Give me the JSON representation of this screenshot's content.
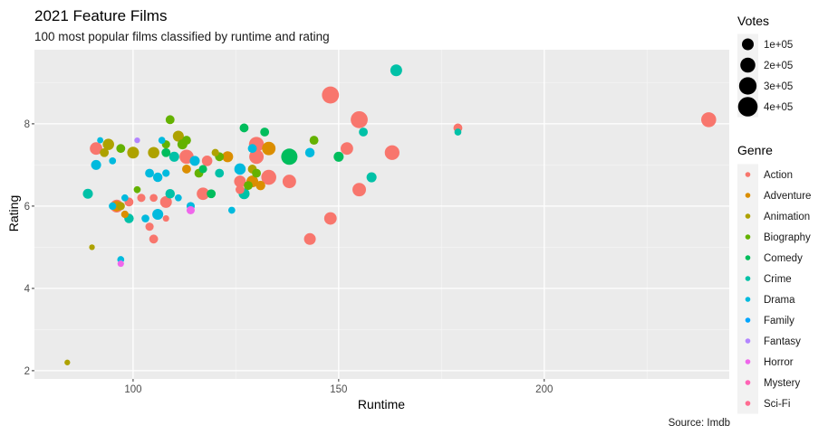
{
  "chart_data": {
    "type": "scatter",
    "title": "2021 Feature Films",
    "subtitle": "100 most popular films classified by runtime and rating",
    "xlabel": "Runtime",
    "ylabel": "Rating",
    "caption": "Source: Imdb",
    "xlim": [
      76,
      245
    ],
    "ylim": [
      1.8,
      9.8
    ],
    "x_ticks": [
      100,
      150,
      200
    ],
    "y_ticks": [
      2,
      4,
      6,
      8
    ],
    "grid": true,
    "legend_placement": "right",
    "size_legend": {
      "title": "Votes",
      "items": [
        {
          "label": "1e+05",
          "votes": 100000
        },
        {
          "label": "2e+05",
          "votes": 200000
        },
        {
          "label": "3e+05",
          "votes": 300000
        },
        {
          "label": "4e+05",
          "votes": 400000
        }
      ]
    },
    "color_legend": {
      "title": "Genre",
      "items": [
        {
          "label": "Action",
          "color": "#F8766D"
        },
        {
          "label": "Adventure",
          "color": "#DB8E00"
        },
        {
          "label": "Animation",
          "color": "#AEA200"
        },
        {
          "label": "Biography",
          "color": "#64B200"
        },
        {
          "label": "Comedy",
          "color": "#00BD5C"
        },
        {
          "label": "Crime",
          "color": "#00C1A7"
        },
        {
          "label": "Drama",
          "color": "#00BADE"
        },
        {
          "label": "Family",
          "color": "#00A6FF"
        },
        {
          "label": "Fantasy",
          "color": "#B385FF"
        },
        {
          "label": "Horror",
          "color": "#EF67EB"
        },
        {
          "label": "Mystery",
          "color": "#FF63B6"
        },
        {
          "label": "Sci-Fi",
          "color": "#FF6C91"
        }
      ]
    },
    "points": [
      {
        "x": 84,
        "y": 2.2,
        "votes": 5000,
        "genre": "Animation"
      },
      {
        "x": 90,
        "y": 5.0,
        "votes": 5000,
        "genre": "Animation"
      },
      {
        "x": 89,
        "y": 6.3,
        "votes": 60000,
        "genre": "Crime"
      },
      {
        "x": 91,
        "y": 7.0,
        "votes": 60000,
        "genre": "Drama"
      },
      {
        "x": 91,
        "y": 7.4,
        "votes": 120000,
        "genre": "Action"
      },
      {
        "x": 92,
        "y": 7.6,
        "votes": 8000,
        "genre": "Drama"
      },
      {
        "x": 93,
        "y": 7.3,
        "votes": 40000,
        "genre": "Animation"
      },
      {
        "x": 94,
        "y": 7.5,
        "votes": 90000,
        "genre": "Animation"
      },
      {
        "x": 95,
        "y": 7.1,
        "votes": 15000,
        "genre": "Drama"
      },
      {
        "x": 95,
        "y": 6.0,
        "votes": 20000,
        "genre": "Drama"
      },
      {
        "x": 96,
        "y": 6.0,
        "votes": 130000,
        "genre": "Action"
      },
      {
        "x": 96,
        "y": 6.0,
        "votes": 70000,
        "genre": "Adventure"
      },
      {
        "x": 97,
        "y": 6.0,
        "votes": 30000,
        "genre": "Animation"
      },
      {
        "x": 97,
        "y": 7.4,
        "votes": 40000,
        "genre": "Biography"
      },
      {
        "x": 97,
        "y": 4.7,
        "votes": 15000,
        "genre": "Drama"
      },
      {
        "x": 97,
        "y": 4.6,
        "votes": 10000,
        "genre": "Horror"
      },
      {
        "x": 98,
        "y": 5.8,
        "votes": 20000,
        "genre": "Adventure"
      },
      {
        "x": 98,
        "y": 6.2,
        "votes": 15000,
        "genre": "Drama"
      },
      {
        "x": 99,
        "y": 5.7,
        "votes": 50000,
        "genre": "Crime"
      },
      {
        "x": 99,
        "y": 6.1,
        "votes": 40000,
        "genre": "Action"
      },
      {
        "x": 100,
        "y": 7.3,
        "votes": 100000,
        "genre": "Animation"
      },
      {
        "x": 101,
        "y": 7.6,
        "votes": 5000,
        "genre": "Fantasy"
      },
      {
        "x": 101,
        "y": 6.4,
        "votes": 15000,
        "genre": "Biography"
      },
      {
        "x": 102,
        "y": 6.2,
        "votes": 30000,
        "genre": "Action"
      },
      {
        "x": 103,
        "y": 5.7,
        "votes": 25000,
        "genre": "Drama"
      },
      {
        "x": 104,
        "y": 5.5,
        "votes": 30000,
        "genre": "Action"
      },
      {
        "x": 104,
        "y": 6.8,
        "votes": 40000,
        "genre": "Drama"
      },
      {
        "x": 105,
        "y": 7.3,
        "votes": 90000,
        "genre": "Animation"
      },
      {
        "x": 105,
        "y": 5.2,
        "votes": 40000,
        "genre": "Action"
      },
      {
        "x": 105,
        "y": 6.2,
        "votes": 25000,
        "genre": "Action"
      },
      {
        "x": 106,
        "y": 6.7,
        "votes": 50000,
        "genre": "Drama"
      },
      {
        "x": 106,
        "y": 5.8,
        "votes": 80000,
        "genre": "Drama"
      },
      {
        "x": 107,
        "y": 7.6,
        "votes": 15000,
        "genre": "Drama"
      },
      {
        "x": 108,
        "y": 6.1,
        "votes": 100000,
        "genre": "Action"
      },
      {
        "x": 108,
        "y": 5.7,
        "votes": 10000,
        "genre": "Action"
      },
      {
        "x": 108,
        "y": 6.8,
        "votes": 20000,
        "genre": "Drama"
      },
      {
        "x": 108,
        "y": 7.3,
        "votes": 40000,
        "genre": "Comedy"
      },
      {
        "x": 108,
        "y": 7.5,
        "votes": 30000,
        "genre": "Biography"
      },
      {
        "x": 109,
        "y": 8.1,
        "votes": 40000,
        "genre": "Biography"
      },
      {
        "x": 109,
        "y": 6.3,
        "votes": 50000,
        "genre": "Crime"
      },
      {
        "x": 110,
        "y": 7.2,
        "votes": 60000,
        "genre": "Crime"
      },
      {
        "x": 111,
        "y": 6.2,
        "votes": 15000,
        "genre": "Drama"
      },
      {
        "x": 111,
        "y": 7.7,
        "votes": 80000,
        "genre": "Animation"
      },
      {
        "x": 112,
        "y": 7.5,
        "votes": 60000,
        "genre": "Biography"
      },
      {
        "x": 113,
        "y": 6.9,
        "votes": 40000,
        "genre": "Adventure"
      },
      {
        "x": 113,
        "y": 7.2,
        "votes": 170000,
        "genre": "Action"
      },
      {
        "x": 113,
        "y": 7.6,
        "votes": 40000,
        "genre": "Biography"
      },
      {
        "x": 114,
        "y": 6.0,
        "votes": 30000,
        "genre": "Drama"
      },
      {
        "x": 114,
        "y": 5.9,
        "votes": 30000,
        "genre": "Horror"
      },
      {
        "x": 115,
        "y": 7.1,
        "votes": 60000,
        "genre": "Drama"
      },
      {
        "x": 116,
        "y": 6.8,
        "votes": 40000,
        "genre": "Biography"
      },
      {
        "x": 117,
        "y": 6.3,
        "votes": 120000,
        "genre": "Action"
      },
      {
        "x": 117,
        "y": 6.9,
        "votes": 30000,
        "genre": "Comedy"
      },
      {
        "x": 118,
        "y": 7.1,
        "votes": 70000,
        "genre": "Action"
      },
      {
        "x": 119,
        "y": 6.3,
        "votes": 40000,
        "genre": "Comedy"
      },
      {
        "x": 120,
        "y": 7.3,
        "votes": 20000,
        "genre": "Animation"
      },
      {
        "x": 121,
        "y": 7.2,
        "votes": 40000,
        "genre": "Biography"
      },
      {
        "x": 121,
        "y": 6.8,
        "votes": 40000,
        "genre": "Crime"
      },
      {
        "x": 123,
        "y": 7.2,
        "votes": 80000,
        "genre": "Adventure"
      },
      {
        "x": 124,
        "y": 5.9,
        "votes": 15000,
        "genre": "Drama"
      },
      {
        "x": 126,
        "y": 6.9,
        "votes": 90000,
        "genre": "Drama"
      },
      {
        "x": 126,
        "y": 6.6,
        "votes": 100000,
        "genre": "Action"
      },
      {
        "x": 126,
        "y": 6.4,
        "votes": 40000,
        "genre": "Action"
      },
      {
        "x": 127,
        "y": 7.9,
        "votes": 40000,
        "genre": "Comedy"
      },
      {
        "x": 127,
        "y": 6.3,
        "votes": 80000,
        "genre": "Crime"
      },
      {
        "x": 128,
        "y": 6.5,
        "votes": 40000,
        "genre": "Biography"
      },
      {
        "x": 129,
        "y": 7.4,
        "votes": 40000,
        "genre": "Drama"
      },
      {
        "x": 129,
        "y": 6.6,
        "votes": 100000,
        "genre": "Adventure"
      },
      {
        "x": 129,
        "y": 6.9,
        "votes": 40000,
        "genre": "Animation"
      },
      {
        "x": 130,
        "y": 7.5,
        "votes": 200000,
        "genre": "Action"
      },
      {
        "x": 130,
        "y": 7.2,
        "votes": 180000,
        "genre": "Action"
      },
      {
        "x": 130,
        "y": 6.8,
        "votes": 40000,
        "genre": "Biography"
      },
      {
        "x": 131,
        "y": 6.5,
        "votes": 50000,
        "genre": "Adventure"
      },
      {
        "x": 132,
        "y": 7.8,
        "votes": 40000,
        "genre": "Comedy"
      },
      {
        "x": 133,
        "y": 6.7,
        "votes": 200000,
        "genre": "Action"
      },
      {
        "x": 133,
        "y": 7.4,
        "votes": 150000,
        "genre": "Adventure"
      },
      {
        "x": 138,
        "y": 7.2,
        "votes": 250000,
        "genre": "Comedy"
      },
      {
        "x": 138,
        "y": 6.6,
        "votes": 150000,
        "genre": "Action"
      },
      {
        "x": 143,
        "y": 5.2,
        "votes": 100000,
        "genre": "Action"
      },
      {
        "x": 143,
        "y": 7.3,
        "votes": 50000,
        "genre": "Drama"
      },
      {
        "x": 144,
        "y": 7.6,
        "votes": 40000,
        "genre": "Biography"
      },
      {
        "x": 148,
        "y": 8.7,
        "votes": 280000,
        "genre": "Action"
      },
      {
        "x": 148,
        "y": 5.7,
        "votes": 120000,
        "genre": "Action"
      },
      {
        "x": 150,
        "y": 7.2,
        "votes": 60000,
        "genre": "Comedy"
      },
      {
        "x": 152,
        "y": 7.4,
        "votes": 120000,
        "genre": "Action"
      },
      {
        "x": 155,
        "y": 8.1,
        "votes": 280000,
        "genre": "Action"
      },
      {
        "x": 155,
        "y": 6.4,
        "votes": 150000,
        "genre": "Action"
      },
      {
        "x": 156,
        "y": 7.8,
        "votes": 40000,
        "genre": "Crime"
      },
      {
        "x": 158,
        "y": 6.7,
        "votes": 60000,
        "genre": "Crime"
      },
      {
        "x": 163,
        "y": 7.3,
        "votes": 190000,
        "genre": "Action"
      },
      {
        "x": 164,
        "y": 9.3,
        "votes": 100000,
        "genre": "Crime"
      },
      {
        "x": 179,
        "y": 7.9,
        "votes": 40000,
        "genre": "Action"
      },
      {
        "x": 179,
        "y": 7.8,
        "votes": 15000,
        "genre": "Crime"
      },
      {
        "x": 240,
        "y": 8.1,
        "votes": 200000,
        "genre": "Action"
      }
    ]
  }
}
